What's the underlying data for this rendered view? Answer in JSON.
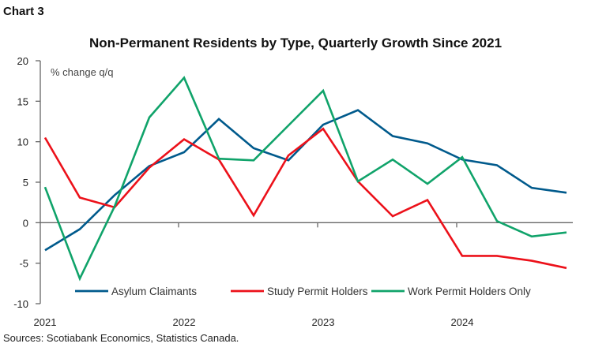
{
  "chart_label": "Chart 3",
  "source": "Sources: Scotiabank Economics, Statistics Canada.",
  "chart_data": {
    "type": "line",
    "title": "Non-Permanent Residents by Type, Quarterly Growth Since 2021",
    "ylabel": "% change q/q",
    "xlabel": "",
    "ylim": [
      -10,
      20
    ],
    "yticks": [
      -10,
      -5,
      0,
      5,
      10,
      15,
      20
    ],
    "x": [
      "2021Q1",
      "2021Q2",
      "2021Q3",
      "2021Q4",
      "2022Q1",
      "2022Q2",
      "2022Q3",
      "2022Q4",
      "2023Q1",
      "2023Q2",
      "2023Q3",
      "2023Q4",
      "2024Q1",
      "2024Q2",
      "2024Q3",
      "2024Q4"
    ],
    "xtick_labels": [
      {
        "label": "2021",
        "index": 0
      },
      {
        "label": "2022",
        "index": 4
      },
      {
        "label": "2023",
        "index": 8
      },
      {
        "label": "2024",
        "index": 12
      }
    ],
    "legend_position": "bottom-inside",
    "grid": false,
    "series": [
      {
        "name": "Asylum Claimants",
        "color": "#005a8c",
        "values": [
          -3.4,
          -0.8,
          3.4,
          7.0,
          8.7,
          12.8,
          9.2,
          7.7,
          12.1,
          13.9,
          10.7,
          9.8,
          7.8,
          7.1,
          4.3,
          3.7
        ]
      },
      {
        "name": "Study Permit Holders",
        "color": "#ec111a",
        "values": [
          10.5,
          3.1,
          1.9,
          6.8,
          10.3,
          7.8,
          0.9,
          8.3,
          11.6,
          5.1,
          0.8,
          2.8,
          -4.1,
          -4.1,
          -4.7,
          -5.6
        ]
      },
      {
        "name": "Work Permit Holders Only",
        "color": "#10a36a",
        "values": [
          4.4,
          -6.9,
          2.0,
          13.0,
          17.9,
          7.9,
          7.7,
          12.0,
          16.3,
          5.1,
          7.8,
          4.8,
          8.1,
          0.2,
          -1.7,
          -1.2
        ]
      }
    ]
  }
}
